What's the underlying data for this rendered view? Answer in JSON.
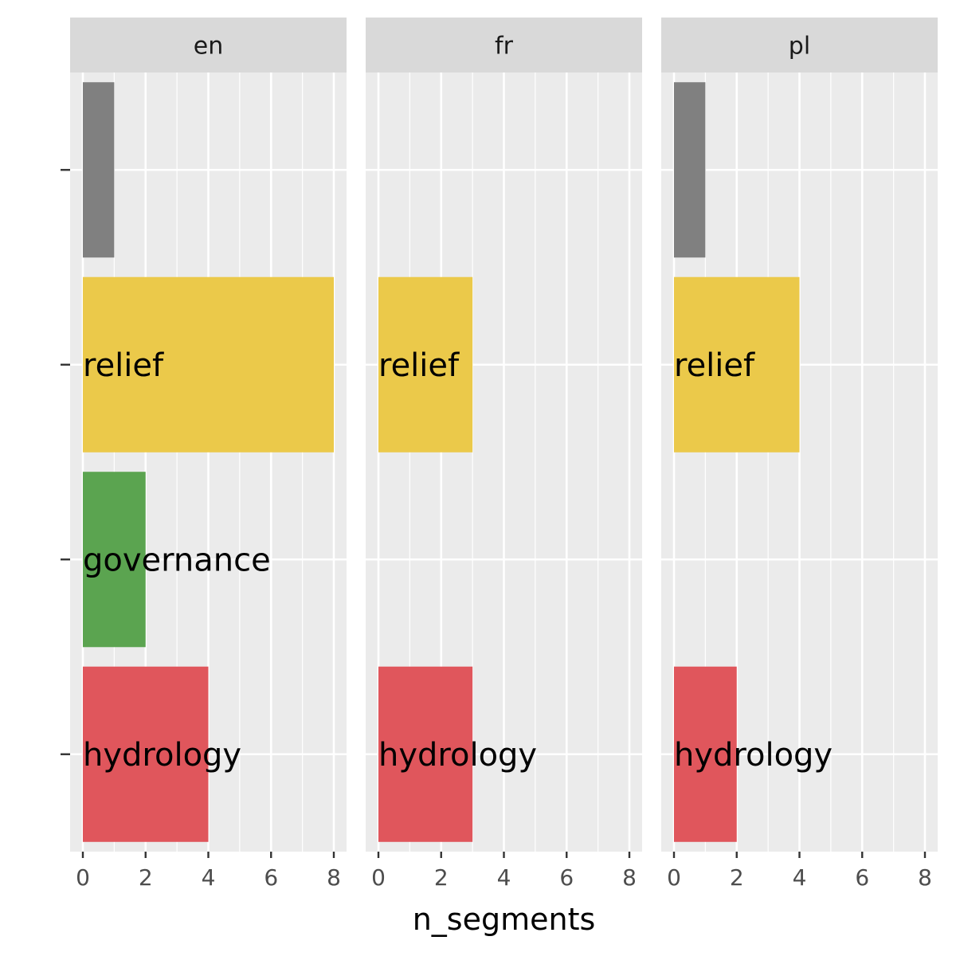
{
  "chart_data": {
    "type": "bar",
    "orientation": "horizontal",
    "faceted_by": "language",
    "facets": [
      "en",
      "fr",
      "pl"
    ],
    "categories": [
      "",
      "relief",
      "governance",
      "hydrology"
    ],
    "xlabel": "n_segments",
    "ylabel": "",
    "xlim": [
      0,
      8
    ],
    "x_ticks": [
      0,
      2,
      4,
      6,
      8
    ],
    "grid": true,
    "legend": "none",
    "colors": {
      "": "#808080",
      "relief": "#EBC94A",
      "governance": "#5BA450",
      "hydrology": "#E0565C"
    },
    "panel_background": "#EBEBEB",
    "strip_background": "#D9D9D9",
    "series": [
      {
        "facet": "en",
        "values": [
          1,
          8,
          2,
          4
        ]
      },
      {
        "facet": "fr",
        "values": [
          null,
          3,
          null,
          3
        ]
      },
      {
        "facet": "pl",
        "values": [
          1,
          4,
          null,
          2
        ]
      }
    ]
  }
}
